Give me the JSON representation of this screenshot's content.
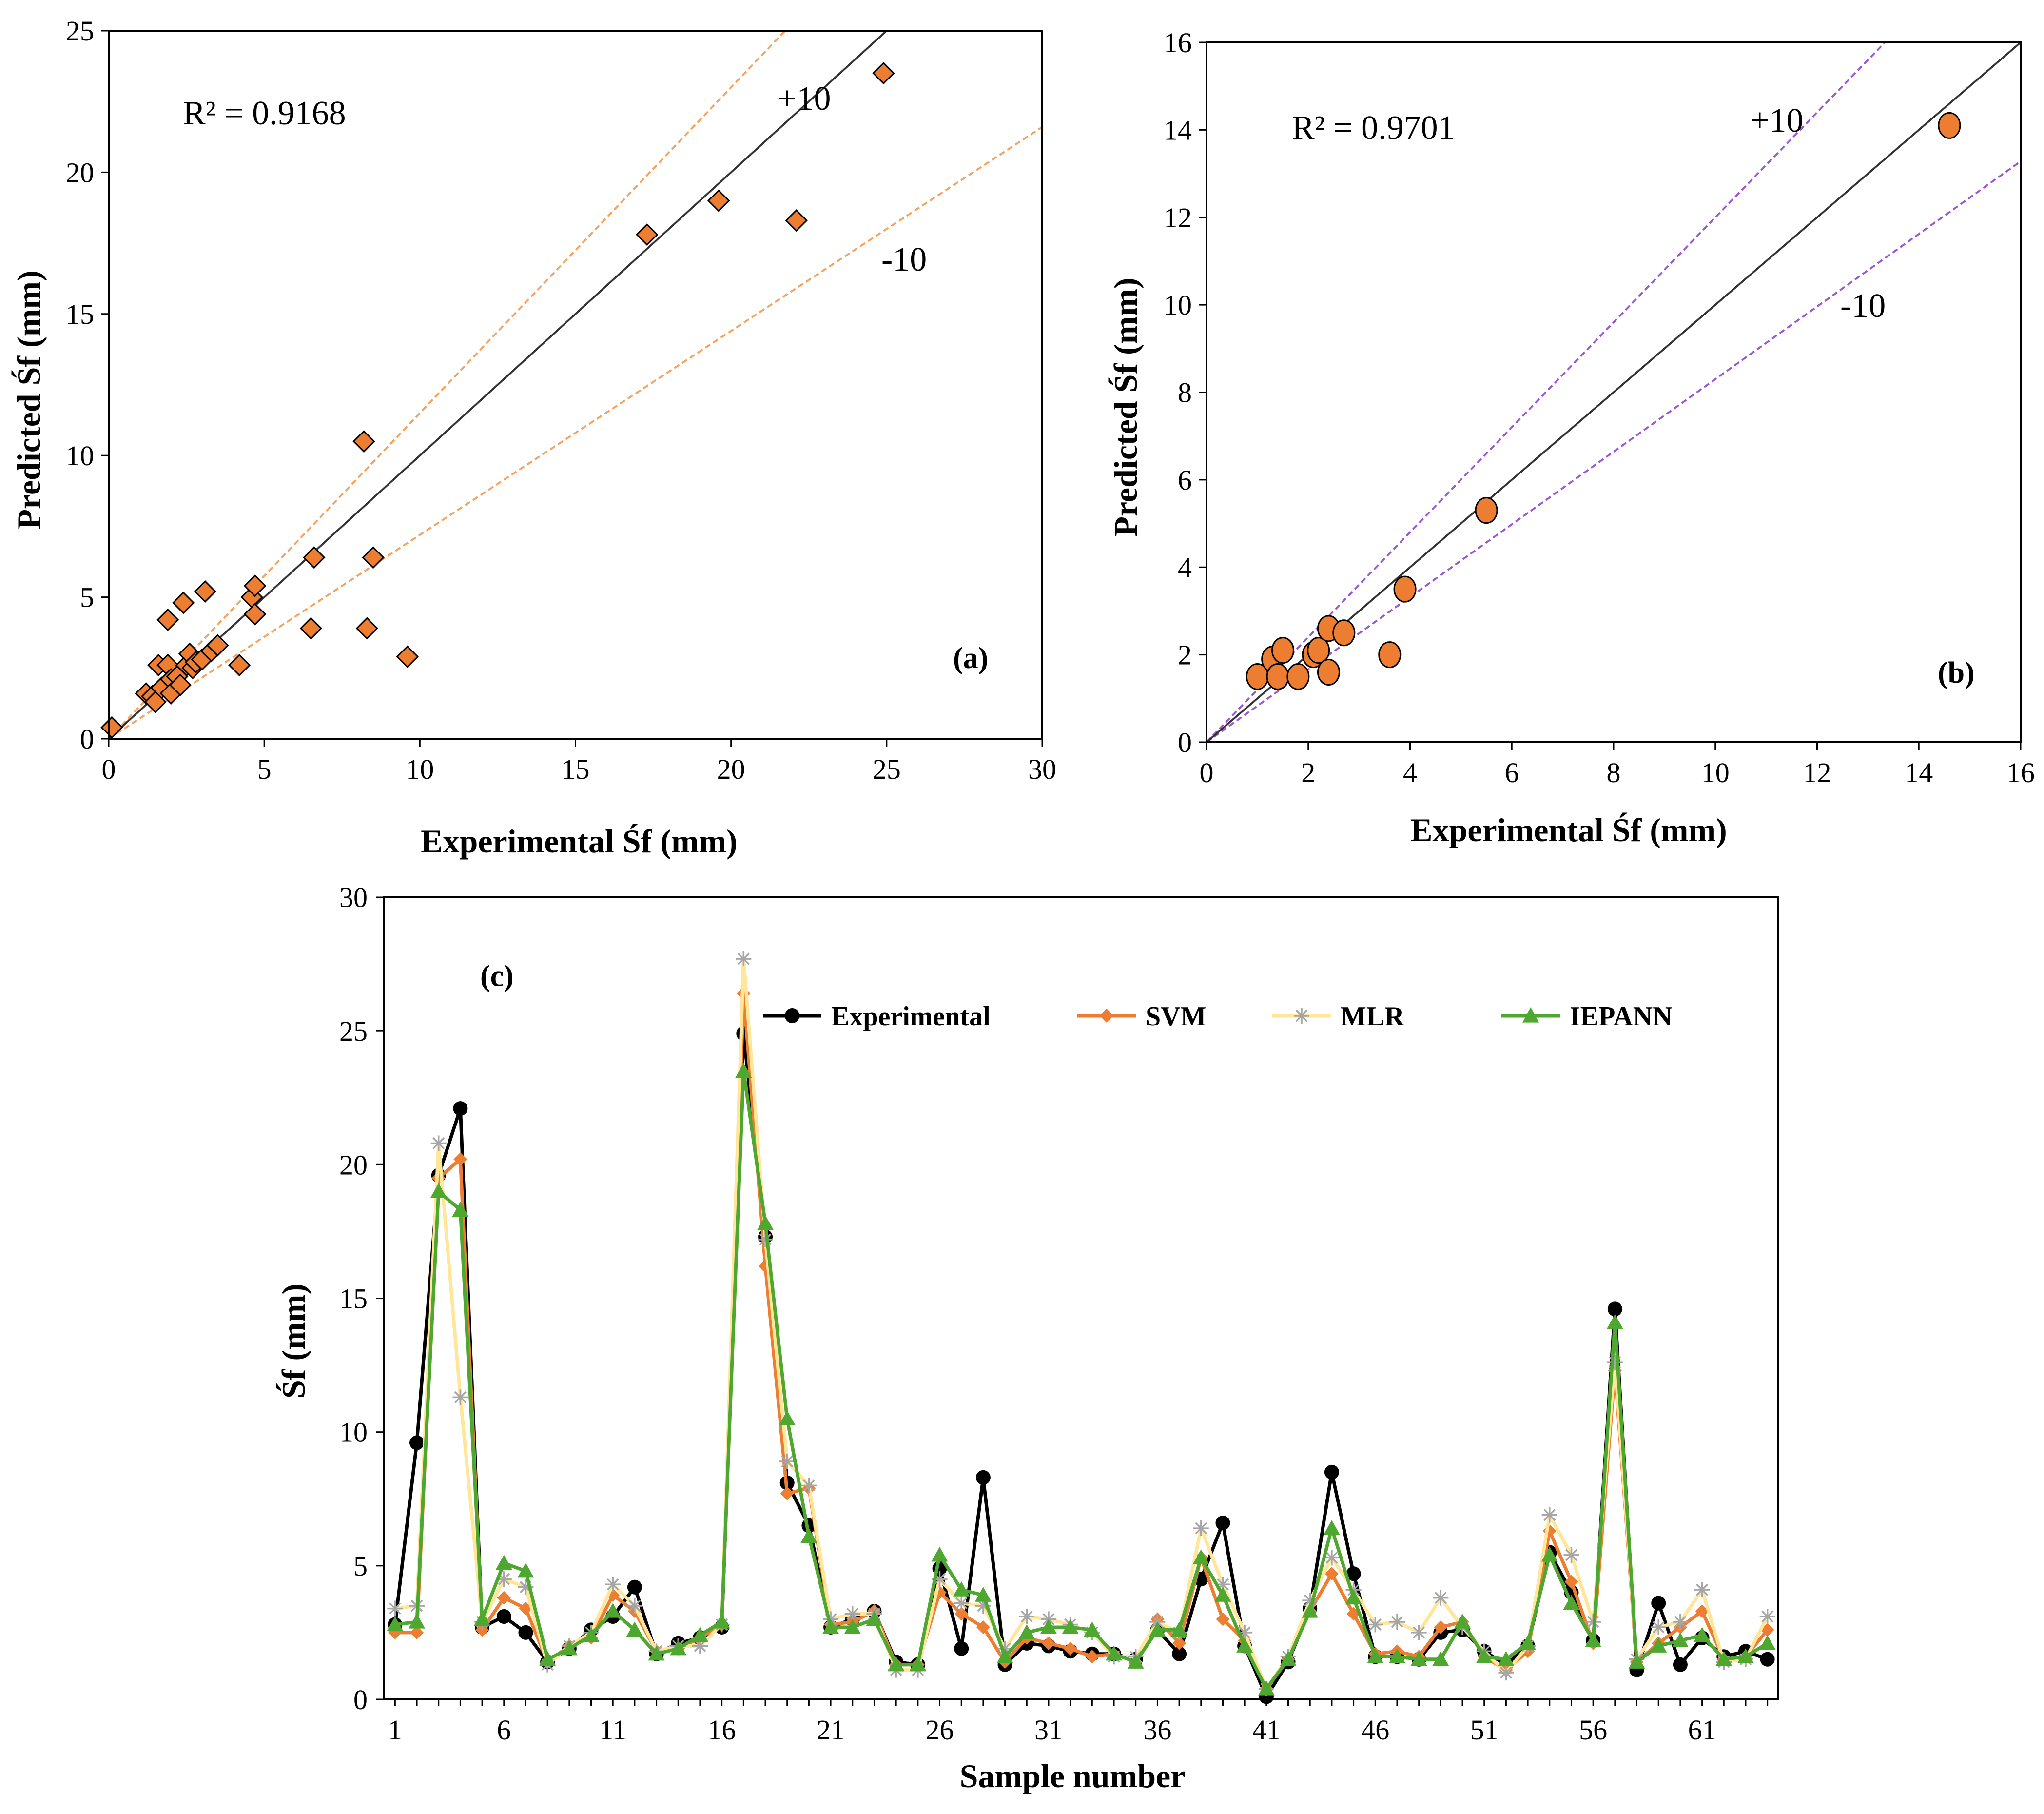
{
  "chart_data": [
    {
      "panel": "(a)",
      "type": "scatter",
      "xlabel": "Experimental Śf (mm)",
      "ylabel": "Predicted Śf (mm)",
      "xlim": [
        0,
        30
      ],
      "ylim": [
        0,
        25
      ],
      "xticks": [
        0,
        5,
        10,
        15,
        20,
        25,
        30
      ],
      "yticks": [
        0,
        5,
        10,
        15,
        20,
        25
      ],
      "annotation": "R² = 0.9168",
      "band_labels": [
        "+10",
        "-10"
      ],
      "band_slopes": [
        1.15,
        0.72
      ],
      "marker": "diamond",
      "marker_color": "#ED7D31",
      "band_color": "#F4A460",
      "points": [
        [
          0.1,
          0.4
        ],
        [
          1.2,
          1.6
        ],
        [
          1.4,
          1.5
        ],
        [
          1.5,
          1.3
        ],
        [
          1.6,
          2.6
        ],
        [
          1.7,
          1.8
        ],
        [
          1.9,
          4.2
        ],
        [
          1.9,
          2.6
        ],
        [
          2.0,
          2.1
        ],
        [
          2.0,
          1.6
        ],
        [
          2.2,
          2.2
        ],
        [
          2.3,
          1.9
        ],
        [
          2.4,
          4.8
        ],
        [
          2.5,
          2.6
        ],
        [
          2.6,
          3.0
        ],
        [
          2.7,
          2.5
        ],
        [
          2.8,
          2.7
        ],
        [
          3.0,
          2.8
        ],
        [
          3.1,
          5.2
        ],
        [
          3.3,
          3.1
        ],
        [
          3.5,
          3.3
        ],
        [
          4.2,
          2.6
        ],
        [
          4.6,
          5.0
        ],
        [
          4.7,
          5.4
        ],
        [
          4.7,
          4.4
        ],
        [
          6.5,
          3.9
        ],
        [
          6.6,
          6.4
        ],
        [
          8.2,
          10.5
        ],
        [
          8.3,
          3.9
        ],
        [
          8.5,
          6.4
        ],
        [
          9.6,
          2.9
        ],
        [
          17.3,
          17.8
        ],
        [
          19.6,
          19.0
        ],
        [
          22.1,
          18.3
        ],
        [
          24.9,
          23.5
        ]
      ]
    },
    {
      "panel": "(b)",
      "type": "scatter",
      "xlabel": "Experimental Śf (mm)",
      "ylabel": "Predicted Śf (mm)",
      "xlim": [
        0,
        16
      ],
      "ylim": [
        0,
        16
      ],
      "xticks": [
        0,
        2,
        4,
        6,
        8,
        10,
        12,
        14,
        16
      ],
      "yticks": [
        0,
        2,
        4,
        6,
        8,
        10,
        12,
        14,
        16
      ],
      "annotation": "R² = 0.9701",
      "band_labels": [
        "+10",
        "-10"
      ],
      "band_slopes": [
        1.2,
        0.83
      ],
      "marker": "circle",
      "marker_color": "#ED7D31",
      "band_color": "#9B59D0",
      "points": [
        [
          1.0,
          1.5
        ],
        [
          1.3,
          1.9
        ],
        [
          1.4,
          1.5
        ],
        [
          1.5,
          2.1
        ],
        [
          1.8,
          1.5
        ],
        [
          2.1,
          2.0
        ],
        [
          2.2,
          2.1
        ],
        [
          2.4,
          2.6
        ],
        [
          2.4,
          1.6
        ],
        [
          2.7,
          2.5
        ],
        [
          3.6,
          2.0
        ],
        [
          3.9,
          3.5
        ],
        [
          5.5,
          5.3
        ],
        [
          14.6,
          14.1
        ]
      ]
    },
    {
      "panel": "(c)",
      "type": "line",
      "xlabel": "Sample number",
      "ylabel": "Śf (mm)",
      "xlim": [
        1,
        64
      ],
      "ylim": [
        0,
        30
      ],
      "xticks": [
        1,
        6,
        11,
        16,
        21,
        26,
        31,
        36,
        41,
        46,
        51,
        56,
        61
      ],
      "yticks": [
        0,
        5,
        10,
        15,
        20,
        25,
        30
      ],
      "legend_position": "top-right",
      "series": [
        {
          "name": "Experimental",
          "color": "#000000",
          "marker": "circle",
          "values": [
            2.8,
            9.6,
            19.6,
            22.1,
            2.7,
            3.1,
            2.5,
            1.4,
            1.9,
            2.6,
            3.1,
            4.2,
            1.7,
            2.1,
            2.3,
            2.7,
            24.9,
            17.3,
            8.1,
            6.5,
            2.7,
            3.0,
            3.3,
            1.4,
            1.3,
            4.9,
            1.9,
            8.3,
            1.3,
            2.1,
            2.0,
            1.8,
            1.7,
            1.7,
            1.5,
            2.6,
            1.7,
            4.5,
            6.6,
            2.0,
            0.1,
            1.4,
            3.4,
            8.5,
            4.7,
            1.6,
            1.6,
            1.5,
            2.5,
            2.6,
            1.8,
            1.3,
            2.0,
            5.5,
            4.0,
            2.2,
            14.6,
            1.1,
            3.6,
            1.3,
            2.3,
            1.6,
            1.8,
            1.5
          ]
        },
        {
          "name": "SVM",
          "color": "#ED7D31",
          "marker": "diamond",
          "values": [
            2.5,
            2.5,
            19.5,
            20.2,
            2.6,
            3.8,
            3.4,
            1.4,
            2.0,
            2.3,
            3.9,
            3.3,
            1.8,
            1.9,
            2.3,
            2.8,
            26.4,
            16.2,
            7.7,
            7.9,
            2.8,
            2.9,
            3.3,
            1.3,
            1.3,
            4.0,
            3.2,
            2.7,
            1.4,
            2.3,
            2.1,
            1.9,
            1.6,
            1.7,
            1.4,
            3.0,
            2.1,
            5.3,
            3.0,
            2.2,
            0.4,
            1.5,
            3.3,
            4.7,
            3.2,
            1.7,
            1.8,
            1.6,
            2.7,
            2.9,
            1.6,
            1.1,
            1.8,
            6.3,
            4.4,
            2.1,
            12.3,
            1.4,
            2.1,
            2.7,
            3.3,
            1.5,
            1.6,
            2.6
          ]
        },
        {
          "name": "MLR",
          "color": "#FFE699",
          "marker": "star",
          "values": [
            3.4,
            3.5,
            20.8,
            11.3,
            2.9,
            4.5,
            4.2,
            1.3,
            2.0,
            2.5,
            4.3,
            3.5,
            1.8,
            2.0,
            2.0,
            2.8,
            27.7,
            17.2,
            8.9,
            8.0,
            3.0,
            3.2,
            3.2,
            1.1,
            1.1,
            4.5,
            3.6,
            3.5,
            1.9,
            3.1,
            3.0,
            2.8,
            2.5,
            1.6,
            1.6,
            2.9,
            2.5,
            6.4,
            4.3,
            2.5,
            0.4,
            1.6,
            3.7,
            5.3,
            4.1,
            2.8,
            2.9,
            2.5,
            3.8,
            2.7,
            1.8,
            1.0,
            2.0,
            6.9,
            5.4,
            2.9,
            12.6,
            1.5,
            2.7,
            2.9,
            4.1,
            1.4,
            1.5,
            3.1
          ]
        },
        {
          "name": "IEPANN",
          "color": "#4EA72E",
          "marker": "triangle",
          "values": [
            2.8,
            2.9,
            19.0,
            18.3,
            3.0,
            5.1,
            4.8,
            1.5,
            1.9,
            2.4,
            3.3,
            2.6,
            1.7,
            1.9,
            2.4,
            2.9,
            23.5,
            17.8,
            10.5,
            6.1,
            2.7,
            2.7,
            3.0,
            1.3,
            1.3,
            5.4,
            4.1,
            3.9,
            1.6,
            2.5,
            2.7,
            2.7,
            2.6,
            1.7,
            1.4,
            2.6,
            2.6,
            5.3,
            3.9,
            2.0,
            0.4,
            1.5,
            3.3,
            6.4,
            3.8,
            1.6,
            1.6,
            1.5,
            1.5,
            2.9,
            1.6,
            1.5,
            2.1,
            5.4,
            3.6,
            2.2,
            14.1,
            1.4,
            2.0,
            2.2,
            2.4,
            1.5,
            1.6,
            2.1
          ]
        }
      ]
    }
  ]
}
